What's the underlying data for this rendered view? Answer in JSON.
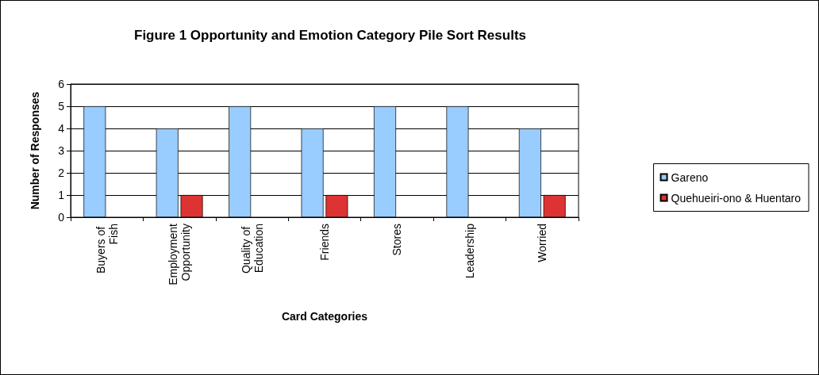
{
  "chart_data": {
    "type": "bar",
    "title": "Figure 1 Opportunity and Emotion Category Pile Sort Results",
    "xlabel": "Card Categories",
    "ylabel": "Number of Responses",
    "categories": [
      "Buyers of Fish",
      "Employment Opportunity",
      "Quality of Education",
      "Friends",
      "Stores",
      "Leadership",
      "Worried"
    ],
    "series": [
      {
        "name": "Gareno",
        "color": "#99ccff",
        "values": [
          5,
          4,
          5,
          4,
          5,
          5,
          4
        ]
      },
      {
        "name": "Quehueiri-ono & Huentaro",
        "color": "#dd3333",
        "values": [
          0,
          1,
          0,
          1,
          0,
          0,
          1
        ]
      }
    ],
    "ylim": [
      0,
      6
    ],
    "yticks": [
      0,
      1,
      2,
      3,
      4,
      5,
      6
    ],
    "grid": "y",
    "legend": "right"
  }
}
